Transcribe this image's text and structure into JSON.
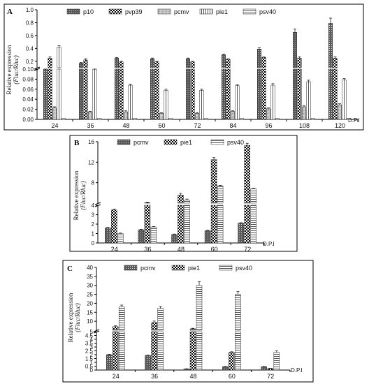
{
  "chart_data": [
    {
      "type": "bar",
      "panel": "A",
      "ylabel": "Relative expression",
      "ylabel2": "(Fluc/Rluc)",
      "xunit": "D.P.I",
      "categories": [
        "24",
        "36",
        "48",
        "60",
        "72",
        "84",
        "96",
        "108",
        "120"
      ],
      "broken_axis": true,
      "lower_range": [
        0,
        0.1
      ],
      "lower_ticks": [
        "0.00",
        "0.02",
        "0.04",
        "0.06",
        "0.08",
        "0.10"
      ],
      "upper_range": [
        0.1,
        1.0
      ],
      "upper_ticks": [
        "0.1",
        "0.2",
        "0.4",
        "0.6",
        "0.8",
        "1.0"
      ],
      "series": [
        {
          "name": "p10",
          "pattern": "dense",
          "values": [
            0.1,
            0.17,
            0.25,
            0.24,
            0.24,
            0.3,
            0.39,
            0.65,
            0.79
          ],
          "errors": [
            0.01,
            0.01,
            0.01,
            0.01,
            0.01,
            0.01,
            0.02,
            0.05,
            0.08
          ]
        },
        {
          "name": "pvp39",
          "pattern": "checker",
          "values": [
            0.25,
            0.22,
            0.19,
            0.19,
            0.19,
            0.23,
            0.26,
            0.25,
            0.25
          ],
          "errors": [
            0.02,
            0.02,
            0.01,
            0.01,
            0.01,
            0.01,
            0.01,
            0.02,
            0.02
          ]
        },
        {
          "name": "pcmv",
          "pattern": "light",
          "values": [
            0.023,
            0.015,
            0.015,
            0.012,
            0.012,
            0.016,
            0.021,
            0.025,
            0.029
          ],
          "errors": [
            0.002,
            0.001,
            0.002,
            0.001,
            0.001,
            0.001,
            0.002,
            0.002,
            0.002
          ]
        },
        {
          "name": "pie1",
          "pattern": "vstripe",
          "values": [
            0.42,
            0.1,
            0.068,
            0.058,
            0.058,
            0.067,
            0.068,
            0.075,
            0.079
          ],
          "errors": [
            0.02,
            0.003,
            0.002,
            0.002,
            0.002,
            0.002,
            0.003,
            0.003,
            0.002
          ]
        },
        {
          "name": "psv40",
          "pattern": "hstripe",
          "values": [
            0.002,
            0.002,
            0.002,
            0.002,
            0.002,
            0.002,
            0.002,
            0.002,
            0.002
          ],
          "errors": [
            0,
            0,
            0,
            0,
            0,
            0,
            0,
            0,
            0
          ]
        }
      ]
    },
    {
      "type": "bar",
      "panel": "B",
      "ylabel": "Relative expression",
      "ylabel2": "(Fluc/Rluc)",
      "xunit": "D.P.I",
      "categories": [
        "24",
        "36",
        "48",
        "60",
        "72"
      ],
      "broken_axis": true,
      "lower_range": [
        0,
        4
      ],
      "lower_ticks": [
        "0",
        "1",
        "2",
        "3",
        "4"
      ],
      "upper_range": [
        4,
        16
      ],
      "upper_ticks": [
        "4",
        "8",
        "12",
        "16"
      ],
      "series": [
        {
          "name": "pcmv",
          "pattern": "dense",
          "values": [
            1.6,
            1.4,
            0.9,
            1.3,
            2.1
          ],
          "errors": [
            0.05,
            0.05,
            0.05,
            0.05,
            0.05
          ]
        },
        {
          "name": "pie1",
          "pattern": "checker",
          "values": [
            3.5,
            4.1,
            5.6,
            12.5,
            15.3
          ],
          "errors": [
            0.1,
            0.1,
            0.3,
            0.4,
            0.4
          ]
        },
        {
          "name": "psv40",
          "pattern": "hstripe",
          "values": [
            1.0,
            1.7,
            4.6,
            7.4,
            6.8
          ],
          "errors": [
            0.05,
            0.05,
            0.2,
            0.1,
            0.1
          ]
        }
      ]
    },
    {
      "type": "bar",
      "panel": "C",
      "ylabel": "Relative expression",
      "ylabel2": "(Fluc/Rluc)",
      "xunit": "D.P.I",
      "categories": [
        "24",
        "36",
        "48",
        "60",
        "72"
      ],
      "broken_axis": true,
      "lower_range": [
        0,
        5
      ],
      "lower_ticks": [
        "0",
        "0.5",
        "1",
        "1.5",
        "2",
        "2.5",
        "3",
        "3.5",
        "4",
        "4.5",
        "5"
      ],
      "upper_range": [
        5,
        40
      ],
      "upper_ticks": [
        "5",
        "10",
        "15",
        "20",
        "25",
        "30",
        "35",
        "40"
      ],
      "series": [
        {
          "name": "pcmv",
          "pattern": "dense",
          "values": [
            2.0,
            1.9,
            0.15,
            0.45,
            0.45
          ],
          "errors": [
            0.05,
            0.05,
            0.02,
            0.03,
            0.03
          ]
        },
        {
          "name": "pie1",
          "pattern": "checker",
          "values": [
            7.0,
            9.3,
            5.8,
            2.3,
            0.2
          ],
          "errors": [
            0.5,
            0.8,
            0.3,
            0.08,
            0.03
          ]
        },
        {
          "name": "psv40",
          "pattern": "hstripe",
          "values": [
            18.0,
            17.2,
            30.0,
            25.0,
            2.3
          ],
          "errors": [
            1.0,
            1.0,
            2.0,
            1.5,
            0.2
          ]
        }
      ]
    }
  ]
}
